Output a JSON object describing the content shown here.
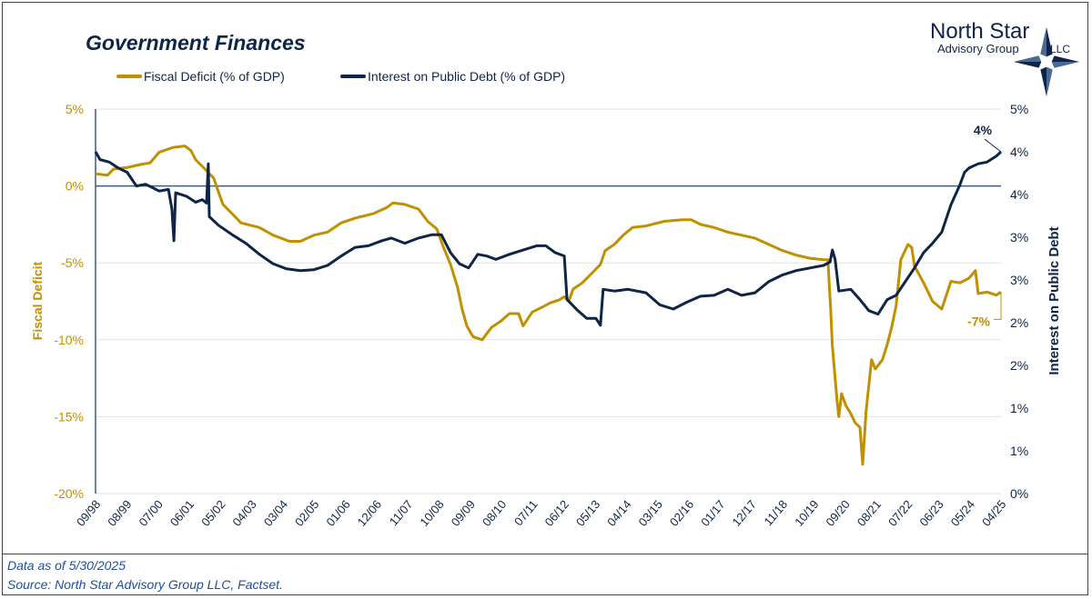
{
  "colors": {
    "deficit": "#c09000",
    "interest": "#0f2547",
    "footer_text": "#1f4e9c"
  },
  "logo": {
    "line1": "North Star",
    "line2": "Advisory Group",
    "line3": "LLC",
    "icon": "compass-star-icon"
  },
  "footer": {
    "asof": "Data as of 5/30/2025",
    "source": "Source: North Star Advisory Group LLC, Factset."
  },
  "chart_data": {
    "type": "line",
    "title": "Government Finances",
    "legend_position": "top",
    "xlabel": "",
    "ylabel_left": "Fiscal Deficit",
    "ylabel_right": "Interest on Public Debt",
    "ylim_left": [
      -20,
      5
    ],
    "ylim_right": [
      0,
      4.5
    ],
    "grid": true,
    "x_ticks": [
      "09/98",
      "08/99",
      "07/00",
      "06/01",
      "05/02",
      "04/03",
      "03/04",
      "02/05",
      "01/06",
      "12/06",
      "11/07",
      "10/08",
      "09/09",
      "08/10",
      "07/11",
      "06/12",
      "05/13",
      "04/14",
      "03/15",
      "02/16",
      "01/17",
      "12/17",
      "11/18",
      "10/19",
      "09/20",
      "08/21",
      "07/22",
      "06/23",
      "05/24",
      "04/25"
    ],
    "y_ticks_left": [
      "5%",
      "0%",
      "-5%",
      "-10%",
      "-15%",
      "-20%"
    ],
    "y_ticks_right": [
      "5%",
      "4%",
      "4%",
      "3%",
      "3%",
      "2%",
      "2%",
      "1%",
      "1%",
      "0%"
    ],
    "annotations": [
      {
        "series": "interest",
        "text": "4%"
      },
      {
        "series": "deficit",
        "text": "-7%"
      }
    ],
    "series": [
      {
        "name": "Fiscal Deficit (% of GDP)",
        "axis": "left",
        "key": "deficit",
        "x": [
          1998.67,
          1999.02,
          1999.2,
          1999.6,
          2000.0,
          2000.27,
          2000.54,
          2000.94,
          2001.29,
          2001.47,
          2001.61,
          2001.88,
          2002.14,
          2002.28,
          2002.41,
          2002.68,
          2002.94,
          2003.48,
          2003.88,
          2004.36,
          2004.68,
          2005.08,
          2005.48,
          2005.88,
          2006.28,
          2006.82,
          2007.22,
          2007.4,
          2007.75,
          2008.15,
          2008.42,
          2008.69,
          2008.87,
          2009.09,
          2009.3,
          2009.43,
          2009.57,
          2009.75,
          2010.02,
          2010.29,
          2010.56,
          2010.82,
          2011.09,
          2011.22,
          2011.49,
          2011.76,
          2012.02,
          2012.29,
          2012.43,
          2012.56,
          2012.69,
          2012.96,
          2013.23,
          2013.49,
          2013.63,
          2013.9,
          2014.16,
          2014.43,
          2014.83,
          2015.36,
          2015.9,
          2016.16,
          2016.43,
          2016.83,
          2017.23,
          2017.63,
          2018.03,
          2018.43,
          2018.84,
          2019.24,
          2019.64,
          2020.04,
          2020.17,
          2020.25,
          2020.3,
          2020.44,
          2020.49,
          2020.57,
          2020.7,
          2020.84,
          2020.97,
          2021.11,
          2021.19,
          2021.29,
          2021.45,
          2021.56,
          2021.77,
          2021.91,
          2022.04,
          2022.17,
          2022.31,
          2022.52,
          2022.63,
          2022.71,
          2022.98,
          2023.24,
          2023.51,
          2023.78,
          2024.04,
          2024.31,
          2024.5,
          2024.58,
          2024.84,
          2025.11,
          2025.25
        ],
        "values": [
          0.8,
          0.7,
          1.1,
          1.2,
          1.4,
          1.5,
          2.2,
          2.5,
          2.6,
          2.3,
          1.7,
          1.1,
          0.5,
          -0.4,
          -1.2,
          -1.8,
          -2.4,
          -2.7,
          -3.2,
          -3.6,
          -3.6,
          -3.2,
          -3.0,
          -2.4,
          -2.1,
          -1.8,
          -1.4,
          -1.1,
          -1.2,
          -1.5,
          -2.3,
          -2.8,
          -3.9,
          -5.1,
          -6.6,
          -8.0,
          -9.1,
          -9.8,
          -10.0,
          -9.2,
          -8.8,
          -8.3,
          -8.3,
          -9.1,
          -8.2,
          -7.9,
          -7.6,
          -7.4,
          -7.2,
          -7.5,
          -6.7,
          -6.3,
          -5.7,
          -5.1,
          -4.2,
          -3.8,
          -3.2,
          -2.7,
          -2.6,
          -2.3,
          -2.2,
          -2.2,
          -2.5,
          -2.7,
          -3.0,
          -3.2,
          -3.4,
          -3.8,
          -4.2,
          -4.5,
          -4.7,
          -4.8,
          -4.8,
          -8.0,
          -10.4,
          -14.0,
          -15.0,
          -13.5,
          -14.3,
          -14.8,
          -15.4,
          -15.7,
          -18.1,
          -14.6,
          -11.3,
          -11.9,
          -11.3,
          -10.3,
          -9.2,
          -7.8,
          -4.8,
          -3.8,
          -4.0,
          -5.2,
          -6.3,
          -7.5,
          -8.0,
          -6.2,
          -6.3,
          -6.0,
          -5.5,
          -7.0,
          -6.9,
          -7.1,
          -6.9
        ]
      },
      {
        "name": "Interest on Public Debt (% of GDP)",
        "axis": "right",
        "key": "interest",
        "x": [
          1998.67,
          1998.8,
          1999.07,
          1999.34,
          1999.6,
          1999.87,
          2000.14,
          2000.54,
          2000.81,
          2000.91,
          2000.97,
          2001.02,
          2001.34,
          2001.61,
          2001.8,
          2001.93,
          2001.98,
          2002.01,
          2002.28,
          2002.68,
          2003.08,
          2003.48,
          2003.88,
          2004.28,
          2004.68,
          2005.08,
          2005.48,
          2005.88,
          2006.28,
          2006.68,
          2007.08,
          2007.35,
          2007.75,
          2008.15,
          2008.55,
          2008.82,
          2009.09,
          2009.35,
          2009.62,
          2009.89,
          2010.16,
          2010.42,
          2010.82,
          2011.22,
          2011.62,
          2011.89,
          2012.16,
          2012.43,
          2012.51,
          2012.83,
          2013.09,
          2013.36,
          2013.49,
          2013.57,
          2013.9,
          2014.3,
          2014.83,
          2015.23,
          2015.63,
          2016.03,
          2016.43,
          2016.83,
          2017.23,
          2017.63,
          2018.03,
          2018.43,
          2018.84,
          2019.24,
          2019.64,
          2020.04,
          2020.23,
          2020.3,
          2020.38,
          2020.49,
          2020.84,
          2021.11,
          2021.37,
          2021.64,
          2021.91,
          2022.17,
          2022.44,
          2022.71,
          2022.98,
          2023.24,
          2023.51,
          2023.78,
          2024.04,
          2024.18,
          2024.31,
          2024.58,
          2024.84,
          2025.11,
          2025.25
        ],
        "values": [
          4.0,
          3.91,
          3.88,
          3.81,
          3.76,
          3.6,
          3.62,
          3.54,
          3.56,
          3.33,
          2.96,
          3.52,
          3.48,
          3.41,
          3.44,
          3.4,
          3.86,
          3.24,
          3.14,
          3.03,
          2.93,
          2.8,
          2.69,
          2.63,
          2.61,
          2.62,
          2.67,
          2.78,
          2.88,
          2.9,
          2.96,
          2.99,
          2.93,
          2.99,
          3.03,
          3.03,
          2.82,
          2.69,
          2.64,
          2.8,
          2.78,
          2.74,
          2.8,
          2.85,
          2.9,
          2.9,
          2.82,
          2.78,
          2.27,
          2.14,
          2.05,
          2.05,
          1.97,
          2.39,
          2.37,
          2.39,
          2.35,
          2.21,
          2.16,
          2.24,
          2.31,
          2.32,
          2.39,
          2.32,
          2.35,
          2.48,
          2.56,
          2.61,
          2.64,
          2.67,
          2.71,
          2.85,
          2.74,
          2.37,
          2.39,
          2.27,
          2.14,
          2.1,
          2.27,
          2.32,
          2.48,
          2.64,
          2.82,
          2.93,
          3.06,
          3.38,
          3.61,
          3.76,
          3.81,
          3.86,
          3.88,
          3.95,
          4.0
        ]
      }
    ]
  }
}
